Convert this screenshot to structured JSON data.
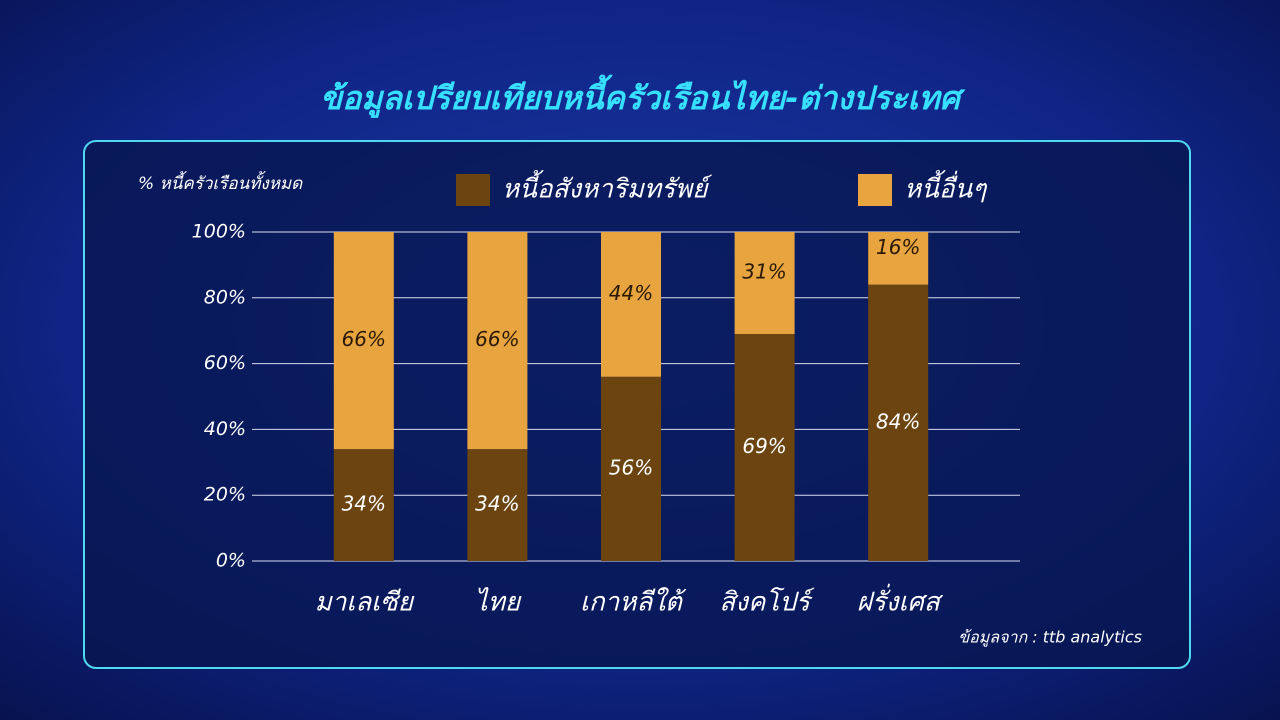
{
  "chart_data": {
    "type": "stacked_bar",
    "title": "ข้อมูลเปรียบเทียบหนี้ครัวเรือนไทย-ต่างประเทศ",
    "y_label": "% หนี้ครัวเรือนทั้งหมด",
    "source": "ข้อมูลจาก : ttb analytics",
    "categories": [
      "มาเลเซีย",
      "ไทย",
      "เกาหลีใต้",
      "สิงคโปร์",
      "ฝรั่งเศส"
    ],
    "series": [
      {
        "name": "หนี้อสังหาริมทรัพย์",
        "color": "#6b4410",
        "values": [
          34,
          34,
          56,
          69,
          84
        ],
        "value_labels": [
          "34%",
          "34%",
          "56%",
          "69%",
          "84%"
        ]
      },
      {
        "name": "หนี้อื่นๆ",
        "color": "#e8a43e",
        "values": [
          66,
          66,
          44,
          31,
          16
        ],
        "value_labels": [
          "66%",
          "66%",
          "44%",
          "31%",
          "16%"
        ]
      }
    ],
    "ylim": [
      0,
      100
    ],
    "yticks": [
      {
        "value": 0,
        "label": "0%"
      },
      {
        "value": 20,
        "label": "20%"
      },
      {
        "value": 40,
        "label": "40%"
      },
      {
        "value": 60,
        "label": "60%"
      },
      {
        "value": 80,
        "label": "80%"
      },
      {
        "value": 100,
        "label": "100%"
      }
    ],
    "grid": true,
    "legend": "top"
  }
}
